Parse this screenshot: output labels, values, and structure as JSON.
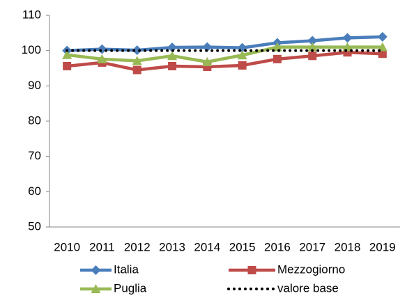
{
  "chart_data": {
    "type": "line",
    "categories": [
      "2010",
      "2011",
      "2012",
      "2013",
      "2014",
      "2015",
      "2016",
      "2017",
      "2018",
      "2019"
    ],
    "series": [
      {
        "name": "Italia",
        "color": "#4a7ebb",
        "marker": "diamond",
        "style": "solid",
        "values": [
          100,
          100.4,
          100.1,
          100.9,
          101,
          100.8,
          102.2,
          102.8,
          103.6,
          103.9
        ]
      },
      {
        "name": "Mezzogiorno",
        "color": "#be4b48",
        "marker": "square",
        "style": "solid",
        "values": [
          95.6,
          96.6,
          94.5,
          95.6,
          95.4,
          95.8,
          97.6,
          98.5,
          99.5,
          99.1
        ]
      },
      {
        "name": "Puglia",
        "color": "#98b954",
        "marker": "triangle",
        "style": "solid",
        "values": [
          98.8,
          97.6,
          97.1,
          98.5,
          96.8,
          98.7,
          101,
          101,
          101,
          101
        ]
      },
      {
        "name": "valore base",
        "color": "#000000",
        "marker": "none",
        "style": "dotted",
        "values": [
          100,
          100,
          100,
          100,
          100,
          100,
          100,
          100,
          100,
          100
        ]
      }
    ],
    "ylim": [
      50,
      110
    ],
    "yticks": [
      50,
      60,
      70,
      80,
      90,
      100,
      110
    ],
    "grid": false,
    "legend": "bottom"
  }
}
